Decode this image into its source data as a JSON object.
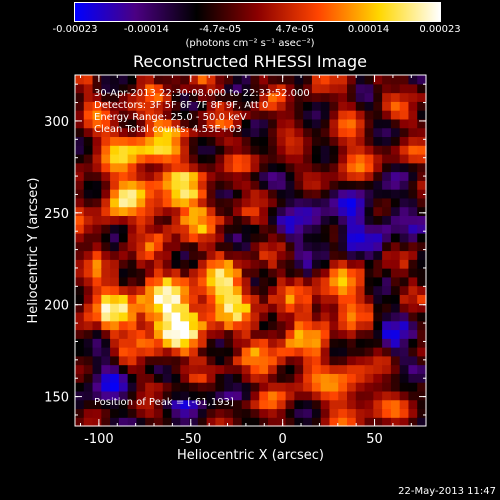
{
  "colorbar": {
    "tick_labels": [
      "-0.00023",
      "-0.00014",
      "-4.7e-05",
      "4.7e-05",
      "0.00014",
      "0.00023"
    ],
    "range": [
      -0.00023,
      0.00023
    ],
    "units_text": "(photons cm⁻² s⁻¹ asec⁻²)",
    "colormap": [
      "#0000ff",
      "#4b0082",
      "#000000",
      "#8b0000",
      "#ff4500",
      "#ffd700",
      "#ffffff"
    ]
  },
  "chart_data": {
    "type": "heatmap",
    "title": "Reconstructed RHESSI Image",
    "xlabel": "Heliocentric X (arcsec)",
    "ylabel": "Heliocentric Y (arcsec)",
    "xlim": [
      -113,
      78
    ],
    "ylim": [
      134,
      325
    ],
    "x_ticks": [
      -100,
      -50,
      0,
      50
    ],
    "y_ticks": [
      150,
      200,
      250,
      300
    ],
    "info_lines": [
      "30-Apr-2013 22:30:08.000 to 22:33:52.000",
      "Detectors: 3F 5F 6F 7F 8F 9F, Att 0",
      "Energy Range: 25.0 - 50.0 keV",
      "Clean    Total counts: 4.53E+03"
    ],
    "peak_label": "Position of Peak = [-61,193]",
    "peak_position": [
      -61,
      193
    ]
  },
  "footer": {
    "date": "22-May-2013 11:47"
  }
}
